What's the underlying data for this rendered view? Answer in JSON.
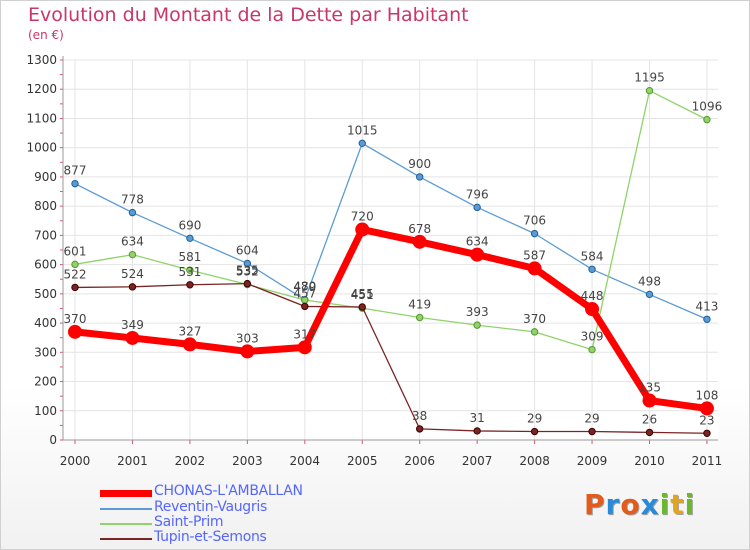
{
  "title": "Evolution du Montant de la Dette par Habitant",
  "unit_label": "(en €)",
  "brand": {
    "text": "Proxiti",
    "letter_colors": [
      "#e25a1c",
      "#2a8ad8",
      "#e25a1c",
      "#2a8ad8",
      "#6bb82e",
      "#e2a41c",
      "#6bb82e"
    ]
  },
  "chart_data": {
    "type": "line",
    "title": "Evolution du Montant de la Dette par Habitant",
    "ylabel": "(en €)",
    "xlabel": "",
    "x": [
      "2000",
      "2001",
      "2002",
      "2003",
      "2004",
      "2005",
      "2006",
      "2007",
      "2008",
      "2009",
      "2010",
      "2011"
    ],
    "ylim": [
      0,
      1300
    ],
    "yticks": [
      0,
      100,
      200,
      300,
      400,
      500,
      600,
      700,
      800,
      900,
      1000,
      1100,
      1200,
      1300
    ],
    "grid": true,
    "legend": "bottom-left",
    "series": [
      {
        "name": "CHONAS-L'AMBALLAN",
        "color": "#ff0000",
        "emphasis": true,
        "values": [
          370,
          349,
          327,
          303,
          317,
          720,
          678,
          634,
          587,
          448,
          135,
          108
        ],
        "labels": [
          "370",
          "349",
          "327",
          "303",
          "317",
          "720",
          "678",
          "634",
          "587",
          "448",
          "135",
          "108"
        ]
      },
      {
        "name": "Reventin-Vaugris",
        "color": "#5b9bd5",
        "emphasis": false,
        "values": [
          877,
          778,
          690,
          604,
          480,
          1015,
          900,
          796,
          706,
          584,
          498,
          413
        ],
        "labels": [
          "877",
          "778",
          "690",
          "604",
          "480",
          "1015",
          "900",
          "796",
          "706",
          "584",
          "498",
          "413"
        ]
      },
      {
        "name": "Saint-Prim",
        "color": "#8fd36a",
        "emphasis": false,
        "values": [
          601,
          634,
          581,
          532,
          479,
          451,
          419,
          393,
          370,
          309,
          1195,
          1096
        ],
        "labels": [
          "601",
          "634",
          "581",
          "532",
          "479",
          "451",
          "419",
          "393",
          "370",
          "309",
          "1195",
          "1096"
        ]
      },
      {
        "name": "Tupin-et-Semons",
        "color": "#7a2424",
        "emphasis": false,
        "values": [
          522,
          524,
          531,
          535,
          457,
          455,
          38,
          31,
          29,
          29,
          26,
          23
        ],
        "labels": [
          "522",
          "524",
          "531",
          "535",
          "457",
          "455",
          "38",
          "31",
          "29",
          "29",
          "26",
          "23"
        ]
      }
    ]
  }
}
